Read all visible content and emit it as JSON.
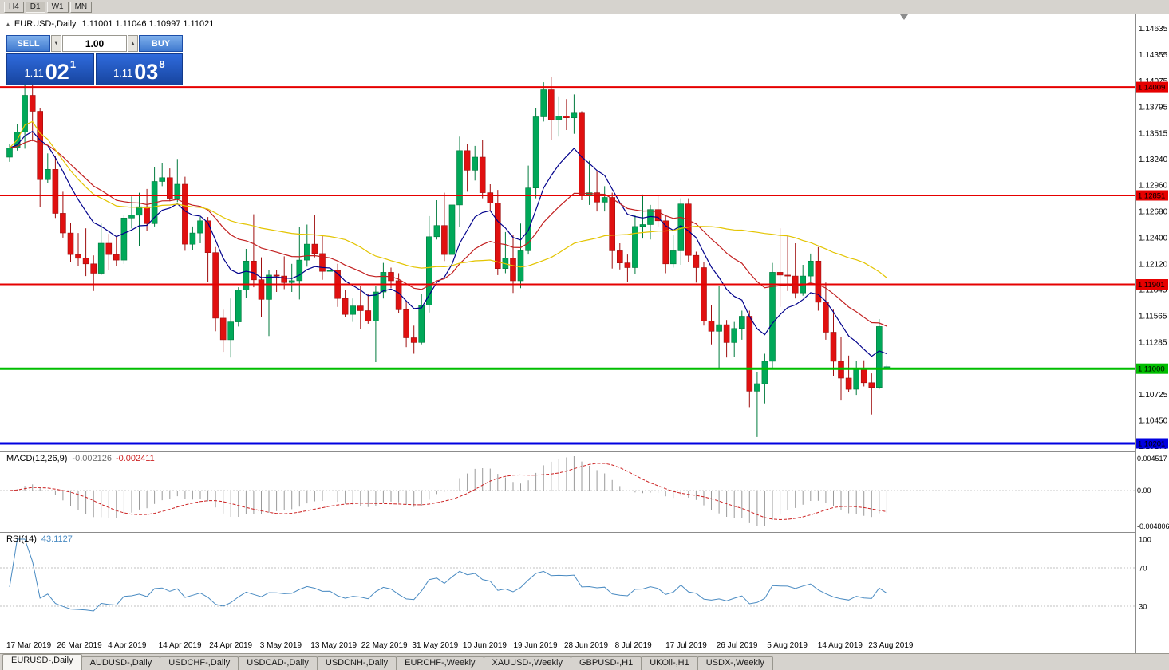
{
  "toolbar": {
    "timeframes": [
      {
        "label": "H4",
        "active": false
      },
      {
        "label": "D1",
        "active": true
      },
      {
        "label": "W1",
        "active": false
      },
      {
        "label": "MN",
        "active": false
      }
    ]
  },
  "title_line": {
    "symbol": "EURUSD-,Daily",
    "ohlc": "1.11001 1.11046 1.10997 1.11021"
  },
  "icons": {
    "panel_collapse": "▲",
    "volume_down": "▼",
    "volume_up": "▲"
  },
  "one_click": {
    "sell_label": "SELL",
    "buy_label": "BUY",
    "volume": "1.00",
    "bid": {
      "prefix": "1.11",
      "big": "02",
      "pip": "1"
    },
    "ask": {
      "prefix": "1.11",
      "big": "03",
      "pip": "8"
    }
  },
  "chart_data": {
    "type": "candlestick",
    "symbol": "EURUSD-",
    "timeframe": "Daily",
    "price_range": {
      "top": 1.147,
      "bottom": 1.1015
    },
    "up_color": "#00a859",
    "down_color": "#e01010",
    "up_border": "#007a3d",
    "down_border": "#9e0e0e",
    "moving_averages": [
      {
        "name": "fast",
        "method": "ema",
        "period": 10,
        "color": "#00008B"
      },
      {
        "name": "medium",
        "method": "ema",
        "period": 25,
        "color": "#c22020"
      },
      {
        "name": "slow",
        "method": "sma",
        "period": 45,
        "color": "#e3c400"
      }
    ],
    "hlines": [
      {
        "price": 1.14009,
        "label": "1.14009",
        "color": "#e60000",
        "width": 2
      },
      {
        "price": 1.12851,
        "label": "1.12851",
        "color": "#e60000",
        "width": 2
      },
      {
        "price": 1.11901,
        "label": "1.11901",
        "color": "#e60000",
        "width": 2
      },
      {
        "price": 1.11,
        "label": "1.11000",
        "color": "#00be00",
        "width": 3
      },
      {
        "price": 1.10201,
        "label": "1.10201",
        "color": "#0000e0",
        "width": 3
      }
    ],
    "candles": [
      [
        1.1326,
        1.134,
        1.1321,
        1.1336
      ],
      [
        1.1336,
        1.1361,
        1.1333,
        1.1353
      ],
      [
        1.1353,
        1.1412,
        1.1335,
        1.1392
      ],
      [
        1.1392,
        1.1405,
        1.1343,
        1.1375
      ],
      [
        1.1375,
        1.1378,
        1.1273,
        1.1302
      ],
      [
        1.1302,
        1.133,
        1.1298,
        1.1313
      ],
      [
        1.1313,
        1.1327,
        1.1261,
        1.1266
      ],
      [
        1.1266,
        1.1289,
        1.124,
        1.1245
      ],
      [
        1.1245,
        1.1256,
        1.1214,
        1.1222
      ],
      [
        1.1222,
        1.1245,
        1.121,
        1.1218
      ],
      [
        1.1218,
        1.125,
        1.1199,
        1.1212
      ],
      [
        1.1212,
        1.1221,
        1.1183,
        1.1202
      ],
      [
        1.1202,
        1.1255,
        1.12,
        1.1234
      ],
      [
        1.1234,
        1.1244,
        1.1205,
        1.1222
      ],
      [
        1.1222,
        1.1242,
        1.121,
        1.1216
      ],
      [
        1.1216,
        1.1264,
        1.1212,
        1.1261
      ],
      [
        1.1261,
        1.1284,
        1.125,
        1.1264
      ],
      [
        1.1264,
        1.1288,
        1.1231,
        1.1273
      ],
      [
        1.1273,
        1.1292,
        1.1247,
        1.1255
      ],
      [
        1.1255,
        1.1315,
        1.1252,
        1.13
      ],
      [
        1.13,
        1.132,
        1.1295,
        1.1304
      ],
      [
        1.1304,
        1.1314,
        1.1279,
        1.1282
      ],
      [
        1.1282,
        1.1324,
        1.1278,
        1.1297
      ],
      [
        1.1297,
        1.1305,
        1.1226,
        1.1233
      ],
      [
        1.1233,
        1.1252,
        1.1227,
        1.1245
      ],
      [
        1.1245,
        1.1262,
        1.1234,
        1.1258
      ],
      [
        1.1258,
        1.1262,
        1.1193,
        1.1224
      ],
      [
        1.1224,
        1.123,
        1.114,
        1.1154
      ],
      [
        1.1154,
        1.1163,
        1.1118,
        1.1131
      ],
      [
        1.1131,
        1.1175,
        1.1112,
        1.115
      ],
      [
        1.115,
        1.1187,
        1.1145,
        1.1184
      ],
      [
        1.1184,
        1.1228,
        1.1176,
        1.1215
      ],
      [
        1.1215,
        1.1265,
        1.1187,
        1.1195
      ],
      [
        1.1195,
        1.1219,
        1.1155,
        1.1174
      ],
      [
        1.1174,
        1.1205,
        1.1135,
        1.12
      ],
      [
        1.12,
        1.1205,
        1.1182,
        1.1199
      ],
      [
        1.1199,
        1.122,
        1.1185,
        1.1192
      ],
      [
        1.1192,
        1.1212,
        1.1182,
        1.1194
      ],
      [
        1.1194,
        1.1251,
        1.1174,
        1.1216
      ],
      [
        1.1216,
        1.1254,
        1.1209,
        1.1233
      ],
      [
        1.1233,
        1.1264,
        1.1219,
        1.1223
      ],
      [
        1.1223,
        1.1242,
        1.1195,
        1.1204
      ],
      [
        1.1204,
        1.1226,
        1.1178,
        1.1205
      ],
      [
        1.1205,
        1.1212,
        1.1166,
        1.1175
      ],
      [
        1.1175,
        1.1184,
        1.1155,
        1.1158
      ],
      [
        1.1158,
        1.1175,
        1.115,
        1.1167
      ],
      [
        1.1167,
        1.1188,
        1.1142,
        1.1162
      ],
      [
        1.1162,
        1.118,
        1.1148,
        1.1151
      ],
      [
        1.1151,
        1.1188,
        1.1107,
        1.1182
      ],
      [
        1.1182,
        1.1213,
        1.1175,
        1.1203
      ],
      [
        1.1203,
        1.1208,
        1.1186,
        1.1194
      ],
      [
        1.1194,
        1.1202,
        1.1159,
        1.1163
      ],
      [
        1.1163,
        1.1173,
        1.1123,
        1.1133
      ],
      [
        1.1133,
        1.1146,
        1.1116,
        1.1128
      ],
      [
        1.1128,
        1.118,
        1.1126,
        1.1168
      ],
      [
        1.1168,
        1.1263,
        1.116,
        1.1241
      ],
      [
        1.1241,
        1.128,
        1.1238,
        1.1253
      ],
      [
        1.1253,
        1.1288,
        1.1215,
        1.1222
      ],
      [
        1.1222,
        1.1309,
        1.1215,
        1.1275
      ],
      [
        1.1275,
        1.1348,
        1.1251,
        1.1333
      ],
      [
        1.1333,
        1.134,
        1.1289,
        1.1312
      ],
      [
        1.1312,
        1.1338,
        1.1301,
        1.1326
      ],
      [
        1.1326,
        1.1344,
        1.1282,
        1.1288
      ],
      [
        1.1288,
        1.1297,
        1.1268,
        1.1277
      ],
      [
        1.1277,
        1.1291,
        1.12,
        1.1207
      ],
      [
        1.1207,
        1.1246,
        1.1202,
        1.1218
      ],
      [
        1.1218,
        1.1243,
        1.1181,
        1.1194
      ],
      [
        1.1194,
        1.1255,
        1.1186,
        1.1226
      ],
      [
        1.1226,
        1.1317,
        1.1222,
        1.1293
      ],
      [
        1.1293,
        1.1378,
        1.1282,
        1.1369
      ],
      [
        1.1369,
        1.1406,
        1.1364,
        1.1398
      ],
      [
        1.1398,
        1.1412,
        1.1344,
        1.1366
      ],
      [
        1.1366,
        1.1391,
        1.1348,
        1.137
      ],
      [
        1.137,
        1.1388,
        1.1355,
        1.1368
      ],
      [
        1.1368,
        1.1393,
        1.1351,
        1.1373
      ],
      [
        1.1373,
        1.1375,
        1.128,
        1.1285
      ],
      [
        1.1285,
        1.1322,
        1.1275,
        1.1288
      ],
      [
        1.1288,
        1.1312,
        1.1268,
        1.1278
      ],
      [
        1.1278,
        1.1295,
        1.1268,
        1.1283
      ],
      [
        1.1283,
        1.1288,
        1.1207,
        1.1226
      ],
      [
        1.1226,
        1.1234,
        1.1206,
        1.1213
      ],
      [
        1.1213,
        1.1222,
        1.1193,
        1.1208
      ],
      [
        1.1208,
        1.1264,
        1.1201,
        1.1252
      ],
      [
        1.1252,
        1.1286,
        1.1239,
        1.1254
      ],
      [
        1.1254,
        1.1275,
        1.1238,
        1.127
      ],
      [
        1.127,
        1.1285,
        1.1252,
        1.1258
      ],
      [
        1.1258,
        1.1263,
        1.1202,
        1.1212
      ],
      [
        1.1212,
        1.1243,
        1.1208,
        1.1226
      ],
      [
        1.1226,
        1.1282,
        1.1211,
        1.1276
      ],
      [
        1.1276,
        1.1282,
        1.1214,
        1.1221
      ],
      [
        1.1221,
        1.1225,
        1.1192,
        1.1208
      ],
      [
        1.1208,
        1.1214,
        1.1146,
        1.1151
      ],
      [
        1.1151,
        1.1168,
        1.1126,
        1.114
      ],
      [
        1.114,
        1.1188,
        1.1101,
        1.1147
      ],
      [
        1.1147,
        1.1152,
        1.1112,
        1.1128
      ],
      [
        1.1128,
        1.115,
        1.1113,
        1.1143
      ],
      [
        1.1143,
        1.1162,
        1.1131,
        1.1156
      ],
      [
        1.1156,
        1.1162,
        1.1059,
        1.1076
      ],
      [
        1.1076,
        1.1096,
        1.1027,
        1.1084
      ],
      [
        1.1084,
        1.1116,
        1.1063,
        1.1108
      ],
      [
        1.1108,
        1.1213,
        1.1101,
        1.1203
      ],
      [
        1.1203,
        1.125,
        1.1166,
        1.12
      ],
      [
        1.12,
        1.1242,
        1.1183,
        1.1199
      ],
      [
        1.1199,
        1.1234,
        1.1175,
        1.1181
      ],
      [
        1.1181,
        1.1211,
        1.1178,
        1.1199
      ],
      [
        1.1199,
        1.1223,
        1.1192,
        1.1215
      ],
      [
        1.1215,
        1.123,
        1.1162,
        1.1171
      ],
      [
        1.1171,
        1.1192,
        1.1131,
        1.1139
      ],
      [
        1.1139,
        1.1163,
        1.1092,
        1.1108
      ],
      [
        1.1108,
        1.1134,
        1.1066,
        1.109
      ],
      [
        1.109,
        1.1114,
        1.1075,
        1.1078
      ],
      [
        1.1078,
        1.1108,
        1.1072,
        1.11
      ],
      [
        1.11,
        1.1109,
        1.1081,
        1.1085
      ],
      [
        1.1085,
        1.1095,
        1.1051,
        1.108
      ],
      [
        1.108,
        1.1153,
        1.1078,
        1.1145
      ],
      [
        1.11001,
        1.11046,
        1.10997,
        1.11021
      ]
    ]
  },
  "price_axis": {
    "labels": [
      "1.14635",
      "1.14355",
      "1.14075",
      "1.13795",
      "1.13515",
      "1.13240",
      "1.12960",
      "1.12680",
      "1.12400",
      "1.12120",
      "1.11845",
      "1.11565",
      "1.11285",
      "1.11005",
      "1.10725",
      "1.10450",
      "1.10170"
    ]
  },
  "time_axis": {
    "labels": [
      "17 Mar 2019",
      "26 Mar 2019",
      "4 Apr 2019",
      "14 Apr 2019",
      "24 Apr 2019",
      "3 May 2019",
      "13 May 2019",
      "22 May 2019",
      "31 May 2019",
      "10 Jun 2019",
      "19 Jun 2019",
      "28 Jun 2019",
      "8 Jul 2019",
      "17 Jul 2019",
      "26 Jul 2019",
      "5 Aug 2019",
      "14 Aug 2019",
      "23 Aug 2019"
    ]
  },
  "macd": {
    "name": "MACD(12,26,9)",
    "value_main": "-0.002126",
    "value_signal": "-0.002411",
    "axis_labels": [
      "0.004517",
      "0.00",
      "-0.004806"
    ],
    "fast": 12,
    "slow": 26,
    "signal": 9,
    "histogram_color": "#9a9a9a",
    "signal_color": "#cc2222"
  },
  "rsi": {
    "name": "RSI(14)",
    "value": "43.1127",
    "axis_labels": [
      "100",
      "70",
      "30"
    ],
    "levels": [
      70,
      30
    ],
    "period": 14,
    "line_color": "#4a8bc2"
  },
  "tabs": [
    {
      "label": "EURUSD-,Daily",
      "active": true
    },
    {
      "label": "AUDUSD-,Daily",
      "active": false
    },
    {
      "label": "USDCHF-,Daily",
      "active": false
    },
    {
      "label": "USDCAD-,Daily",
      "active": false
    },
    {
      "label": "USDCNH-,Daily",
      "active": false
    },
    {
      "label": "EURCHF-,Weekly",
      "active": false
    },
    {
      "label": "XAUUSD-,Weekly",
      "active": false
    },
    {
      "label": "GBPUSD-,H1",
      "active": false
    },
    {
      "label": "UKOil-,H1",
      "active": false
    },
    {
      "label": "USDX-,Weekly",
      "active": false
    }
  ]
}
